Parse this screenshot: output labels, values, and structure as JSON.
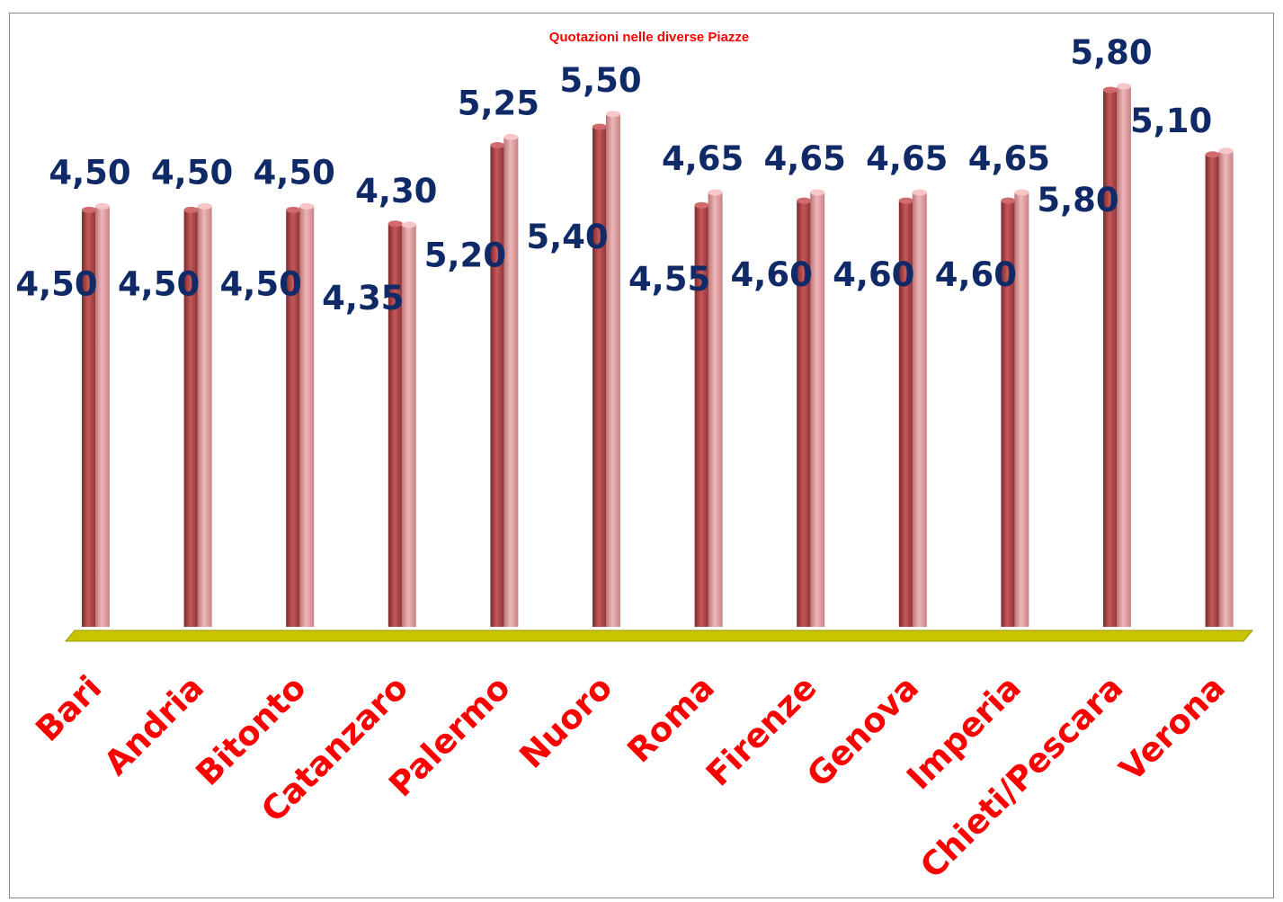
{
  "chart_data": {
    "type": "bar",
    "title": "Quotazioni nelle diverse Piazze",
    "xlabel": "",
    "ylabel": "",
    "categories": [
      "Bari",
      "Andria",
      "Bitonto",
      "Catanzaro",
      "Palermo",
      "Nuoro",
      "Roma",
      "Firenze",
      "Genova",
      "Imperia",
      "Chieti/Pescara",
      "Verona"
    ],
    "series": [
      {
        "values": [
          4.5,
          4.5,
          4.5,
          4.35,
          5.2,
          5.4,
          4.55,
          4.6,
          4.6,
          4.6,
          5.8,
          5.1
        ],
        "labels": [
          "4,50",
          "4,50",
          "4,50",
          "4,35",
          "5,20",
          "5,40",
          "4,55",
          "4,60",
          "4,60",
          "4,60",
          "5,80",
          "5,10"
        ],
        "color": "#b5484a"
      },
      {
        "values": [
          4.5,
          4.5,
          4.5,
          4.3,
          5.25,
          5.5,
          4.65,
          4.65,
          4.65,
          4.65,
          5.8,
          5.1
        ],
        "labels": [
          "4,50",
          "4,50",
          "4,50",
          "4,30",
          "5,25",
          "5,50",
          "4,65",
          "4,65",
          "4,65",
          "4,65",
          "5,80",
          ""
        ],
        "color": "#dd9a9c"
      }
    ],
    "ylim": [
      0,
      5.8
    ],
    "grid": false,
    "legend": "none",
    "floor_color": "#c8c400",
    "category_color": "#ff0000",
    "value_label_color": "#0f2a66"
  }
}
